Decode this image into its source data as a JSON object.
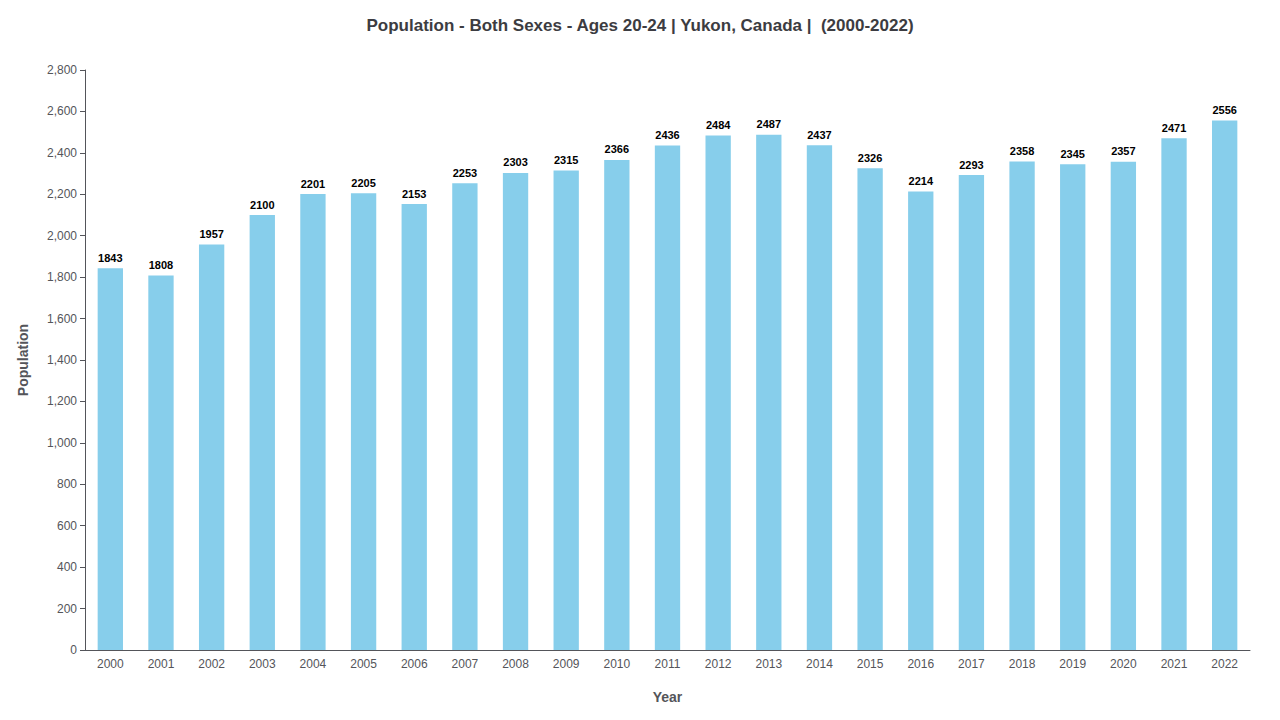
{
  "chart_data": {
    "type": "bar",
    "title": "Population - Both Sexes - Ages 20-24 | Yukon, Canada |  (2000-2022)",
    "x_label": "Year",
    "y_label": "Population",
    "categories": [
      "2000",
      "2001",
      "2002",
      "2003",
      "2004",
      "2005",
      "2006",
      "2007",
      "2008",
      "2009",
      "2010",
      "2011",
      "2012",
      "2013",
      "2014",
      "2015",
      "2016",
      "2017",
      "2018",
      "2019",
      "2020",
      "2021",
      "2022"
    ],
    "values": [
      1843,
      1808,
      1957,
      2100,
      2201,
      2205,
      2153,
      2253,
      2303,
      2315,
      2366,
      2436,
      2484,
      2487,
      2437,
      2326,
      2214,
      2293,
      2358,
      2345,
      2357,
      2471,
      2556
    ],
    "color": "#87CEEB",
    "ylim": [
      0,
      2800
    ],
    "yticks": [
      0,
      200,
      400,
      600,
      800,
      1000,
      1200,
      1400,
      1600,
      1800,
      2000,
      2200,
      2400,
      2600,
      2800
    ],
    "grid": false,
    "data_labels": true
  }
}
